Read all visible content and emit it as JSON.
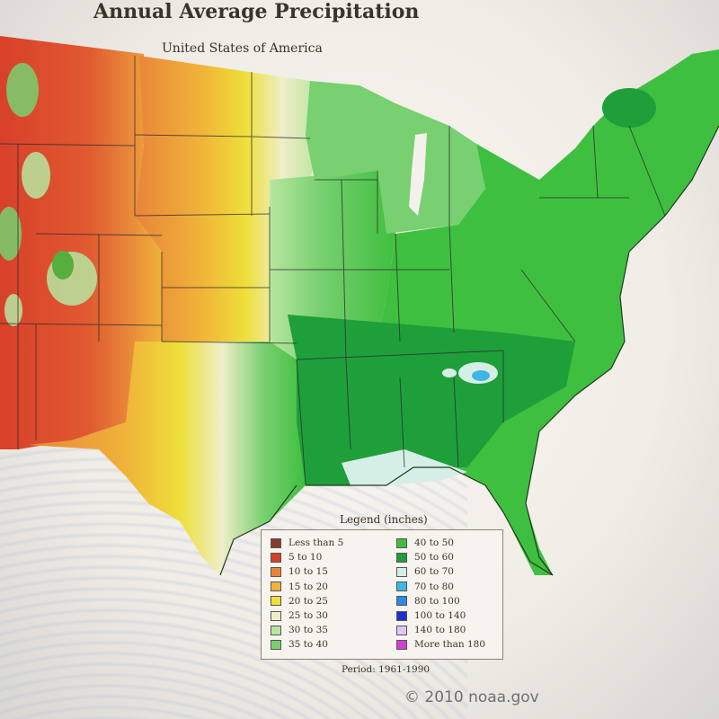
{
  "map": {
    "title": "Annual Average Precipitation",
    "subtitle": "United States of America",
    "credit": "© 2010 noaa.gov",
    "period": "Period: 1961-1990"
  },
  "legend": {
    "title": "Legend (inches)",
    "items": [
      {
        "label": "Less than 5",
        "color": "#8a3a2a"
      },
      {
        "label": "5 to 10",
        "color": "#d8402a"
      },
      {
        "label": "10 to 15",
        "color": "#e8843a"
      },
      {
        "label": "15 to 20",
        "color": "#f0b23a"
      },
      {
        "label": "20 to 25",
        "color": "#eedf3a"
      },
      {
        "label": "25 to 30",
        "color": "#efeec8"
      },
      {
        "label": "30 to 35",
        "color": "#b8e6a0"
      },
      {
        "label": "35 to 40",
        "color": "#78d070"
      },
      {
        "label": "40 to 50",
        "color": "#3fbf3f"
      },
      {
        "label": "50 to 60",
        "color": "#1f9f3a"
      },
      {
        "label": "60 to 70",
        "color": "#d6efe6"
      },
      {
        "label": "70 to 80",
        "color": "#3fb6e6"
      },
      {
        "label": "80 to 100",
        "color": "#2a8ae0"
      },
      {
        "label": "100 to 140",
        "color": "#2030c8"
      },
      {
        "label": "140 to 180",
        "color": "#e0c8f0"
      },
      {
        "label": "More than 180",
        "color": "#d040d0"
      }
    ]
  }
}
